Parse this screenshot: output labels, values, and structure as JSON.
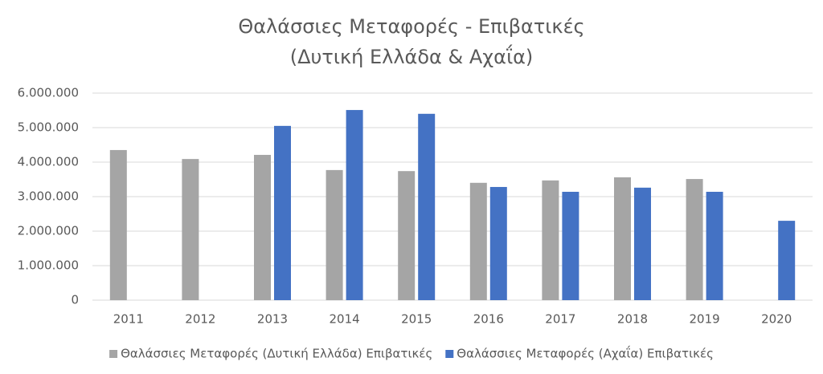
{
  "chart_data": {
    "type": "bar",
    "title": "Θαλάσσιες Μεταφορές - Επιβατικές",
    "subtitle": "(Δυτική Ελλάδα & Αχαΐα)",
    "categories": [
      "2011",
      "2012",
      "2013",
      "2014",
      "2015",
      "2016",
      "2017",
      "2018",
      "2019",
      "2020"
    ],
    "series": [
      {
        "name": "Θαλάσσιες Μεταφορές (Δυτική Ελλάδα) Επιβατικές",
        "color": "#a5a5a5",
        "values": [
          4350000,
          4090000,
          4210000,
          3770000,
          3740000,
          3400000,
          3470000,
          3560000,
          3510000,
          null
        ]
      },
      {
        "name": "Θαλάσσιες Μεταφορές (Αχαΐα) Επιβατικές",
        "color": "#4472c4",
        "values": [
          null,
          null,
          5050000,
          5510000,
          5400000,
          3280000,
          3140000,
          3260000,
          3140000,
          2300000
        ]
      }
    ],
    "ylim": [
      0,
      6000000
    ],
    "yticks": [
      0,
      {
        "value": 1000000,
        "label": "1.000.000"
      },
      {
        "value": 2000000,
        "label": "2.000.000"
      },
      {
        "value": 3000000,
        "label": "3.000.000"
      },
      {
        "value": 4000000,
        "label": "4.000.000"
      },
      {
        "value": 5000000,
        "label": "5.000.000"
      },
      {
        "value": 6000000,
        "label": "6.000.000"
      }
    ],
    "grid": true,
    "legend": "bottom"
  }
}
